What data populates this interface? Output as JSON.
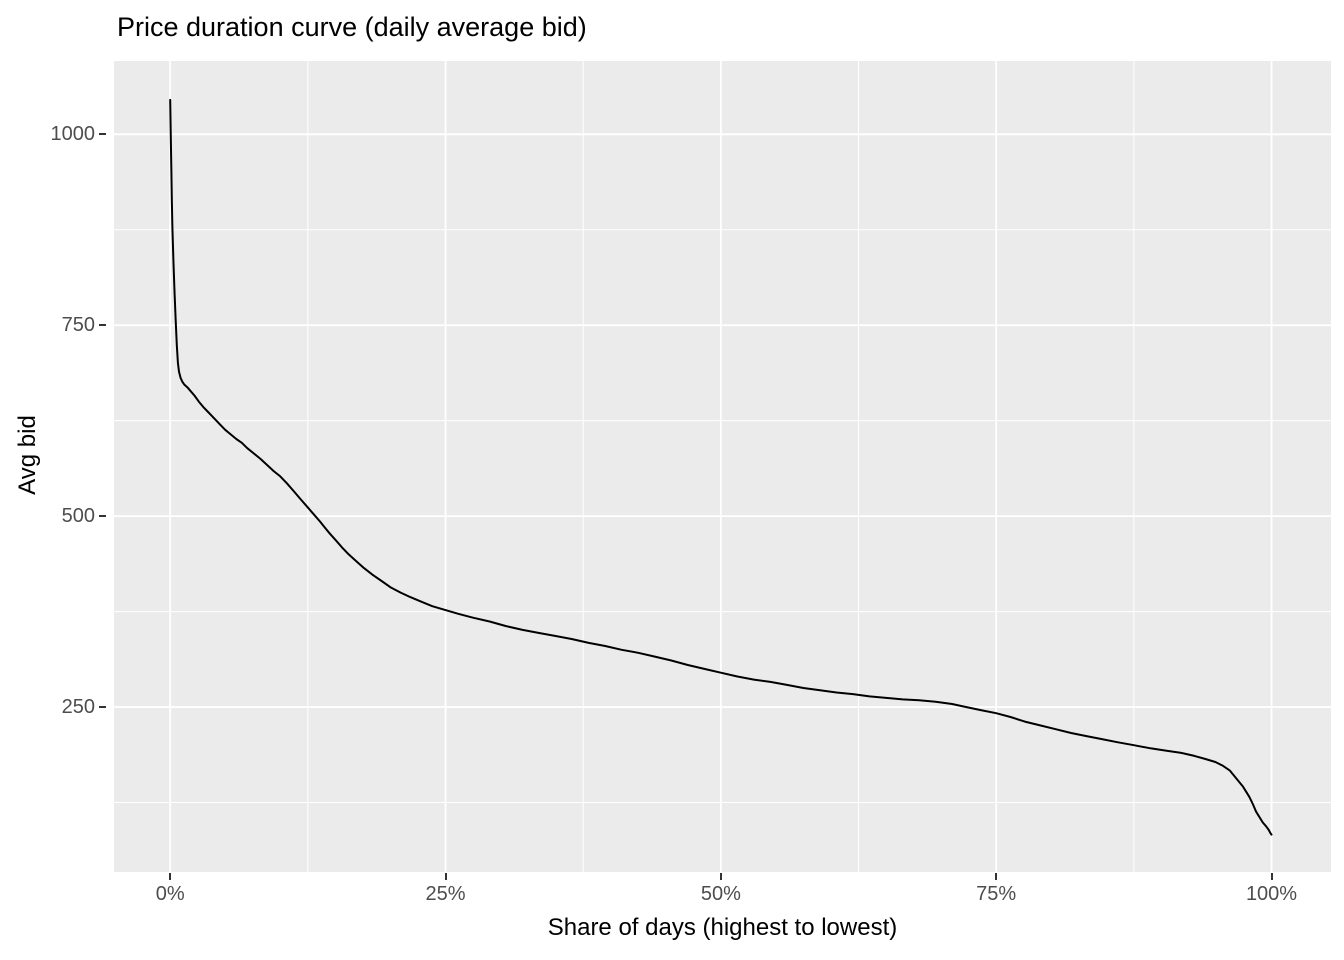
{
  "chart_data": {
    "type": "line",
    "title": "Price duration curve (daily average bid)",
    "xlabel": "Share of days (highest to lowest)",
    "ylabel": "Avg bid",
    "xlim": [
      -5.1,
      105.4
    ],
    "ylim": [
      34,
      1096
    ],
    "grid": true,
    "legend_position": "none",
    "x_ticks": [
      {
        "value": 0,
        "label": "0%"
      },
      {
        "value": 25,
        "label": "25%"
      },
      {
        "value": 50,
        "label": "50%"
      },
      {
        "value": 75,
        "label": "75%"
      },
      {
        "value": 100,
        "label": "100%"
      }
    ],
    "y_ticks": [
      {
        "value": 250,
        "label": "250"
      },
      {
        "value": 500,
        "label": "500"
      },
      {
        "value": 750,
        "label": "750"
      },
      {
        "value": 1000,
        "label": "1000"
      }
    ],
    "x_minor_gridlines": [
      12.5,
      37.5,
      62.5,
      87.5
    ],
    "y_minor_gridlines": [
      125,
      375,
      625,
      875
    ],
    "colors": {
      "panel_bg": "#EBEBEB",
      "grid": "#FFFFFF",
      "line": "#000000",
      "tick_text": "#4D4D4D",
      "tick_mark": "#333333",
      "title_text": "#000000"
    },
    "series": [
      {
        "name": "daily average bid",
        "points": [
          [
            0,
            1045
          ],
          [
            0.05,
            1004
          ],
          [
            0.1,
            958
          ],
          [
            0.15,
            916
          ],
          [
            0.2,
            878
          ],
          [
            0.3,
            831
          ],
          [
            0.4,
            791
          ],
          [
            0.5,
            756
          ],
          [
            0.6,
            724
          ],
          [
            0.7,
            701
          ],
          [
            0.8,
            689
          ],
          [
            0.95,
            681
          ],
          [
            1.1,
            676
          ],
          [
            1.3,
            672
          ],
          [
            1.6,
            668
          ],
          [
            1.9,
            663
          ],
          [
            2.2,
            658
          ],
          [
            2.6,
            650
          ],
          [
            3.0,
            643
          ],
          [
            3.4,
            637
          ],
          [
            3.8,
            631
          ],
          [
            4.2,
            625
          ],
          [
            4.6,
            619
          ],
          [
            5.0,
            613
          ],
          [
            5.5,
            607
          ],
          [
            6.0,
            601
          ],
          [
            6.5,
            596
          ],
          [
            7.0,
            589
          ],
          [
            7.6,
            582
          ],
          [
            8.2,
            575
          ],
          [
            8.8,
            567
          ],
          [
            9.4,
            559
          ],
          [
            10.0,
            552
          ],
          [
            10.6,
            543
          ],
          [
            11.2,
            533
          ],
          [
            11.8,
            523
          ],
          [
            12.4,
            513
          ],
          [
            13.0,
            503
          ],
          [
            13.6,
            493
          ],
          [
            14.1,
            484
          ],
          [
            14.5,
            477
          ],
          [
            15.0,
            469
          ],
          [
            15.6,
            459
          ],
          [
            16.2,
            450
          ],
          [
            16.9,
            441
          ],
          [
            17.6,
            432
          ],
          [
            18.4,
            423
          ],
          [
            19.2,
            415
          ],
          [
            20.0,
            407
          ],
          [
            20.9,
            400
          ],
          [
            21.8,
            394
          ],
          [
            22.8,
            388
          ],
          [
            23.8,
            382
          ],
          [
            25.0,
            377
          ],
          [
            26.2,
            372
          ],
          [
            27.5,
            367
          ],
          [
            29.0,
            362
          ],
          [
            30.5,
            356
          ],
          [
            32.0,
            351
          ],
          [
            33.5,
            347
          ],
          [
            35.0,
            343
          ],
          [
            36.5,
            339
          ],
          [
            38.0,
            334
          ],
          [
            39.5,
            330
          ],
          [
            41.0,
            325
          ],
          [
            42.5,
            321
          ],
          [
            44.0,
            316
          ],
          [
            45.5,
            311
          ],
          [
            47.0,
            305
          ],
          [
            48.5,
            300
          ],
          [
            50.0,
            295
          ],
          [
            51.5,
            290
          ],
          [
            53.0,
            286
          ],
          [
            54.5,
            283
          ],
          [
            56.0,
            279
          ],
          [
            57.5,
            275
          ],
          [
            59.0,
            272
          ],
          [
            60.5,
            269
          ],
          [
            62.0,
            267
          ],
          [
            63.5,
            264
          ],
          [
            65.0,
            262
          ],
          [
            66.5,
            260
          ],
          [
            68.0,
            259
          ],
          [
            69.5,
            257
          ],
          [
            71.0,
            254
          ],
          [
            72.3,
            250
          ],
          [
            73.6,
            246
          ],
          [
            75.0,
            242
          ],
          [
            76.3,
            237
          ],
          [
            77.6,
            231
          ],
          [
            79.0,
            226
          ],
          [
            80.4,
            221
          ],
          [
            81.8,
            216
          ],
          [
            83.2,
            212
          ],
          [
            84.6,
            208
          ],
          [
            86.0,
            204
          ],
          [
            87.5,
            200
          ],
          [
            89.0,
            196
          ],
          [
            90.4,
            193
          ],
          [
            91.8,
            190
          ],
          [
            93.0,
            186
          ],
          [
            94.0,
            182
          ],
          [
            94.9,
            178
          ],
          [
            95.6,
            173
          ],
          [
            96.2,
            167
          ],
          [
            96.6,
            160
          ],
          [
            97.0,
            153
          ],
          [
            97.4,
            146
          ],
          [
            97.7,
            139
          ],
          [
            98.0,
            132
          ],
          [
            98.3,
            123
          ],
          [
            98.6,
            113
          ],
          [
            98.9,
            106
          ],
          [
            99.2,
            99
          ],
          [
            99.5,
            94
          ],
          [
            99.75,
            89
          ],
          [
            99.9,
            85
          ],
          [
            100,
            83
          ]
        ]
      }
    ]
  }
}
